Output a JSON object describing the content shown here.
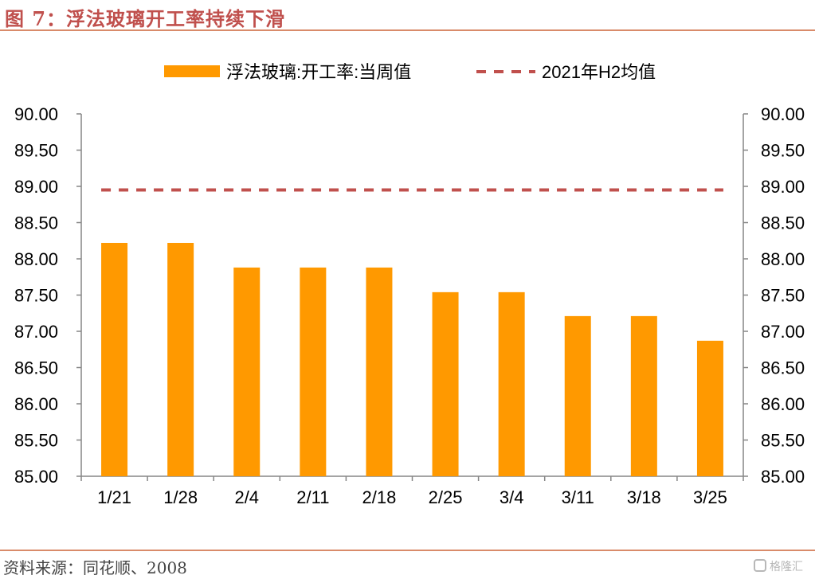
{
  "header": {
    "title": "图 7：浮法玻璃开工率持续下滑"
  },
  "footer": {
    "source": "资料来源：同花顺、2008",
    "watermark": "格隆汇"
  },
  "colors": {
    "bar": "#ff9900",
    "avg_line": "#c0504d",
    "title": "#c0504d",
    "axis": "#868686"
  },
  "chart_data": {
    "type": "bar",
    "categories": [
      "1/21",
      "1/28",
      "2/4",
      "2/11",
      "2/18",
      "2/25",
      "3/4",
      "3/11",
      "3/18",
      "3/25"
    ],
    "series": [
      {
        "name": "浮法玻璃:开工率:当周值",
        "type": "bar",
        "values": [
          88.22,
          88.22,
          87.88,
          87.88,
          87.88,
          87.54,
          87.54,
          87.21,
          87.21,
          86.87
        ]
      },
      {
        "name": "2021年H2均值",
        "type": "line",
        "style": "dashed",
        "values": [
          88.95,
          88.95,
          88.95,
          88.95,
          88.95,
          88.95,
          88.95,
          88.95,
          88.95,
          88.95
        ]
      }
    ],
    "yticks": [
      "85.00",
      "85.50",
      "86.00",
      "86.50",
      "87.00",
      "87.50",
      "88.00",
      "88.50",
      "89.00",
      "89.50",
      "90.00"
    ],
    "ylim": [
      85,
      90
    ],
    "secondary_axis": true,
    "legend_position": "top",
    "grid": false
  }
}
